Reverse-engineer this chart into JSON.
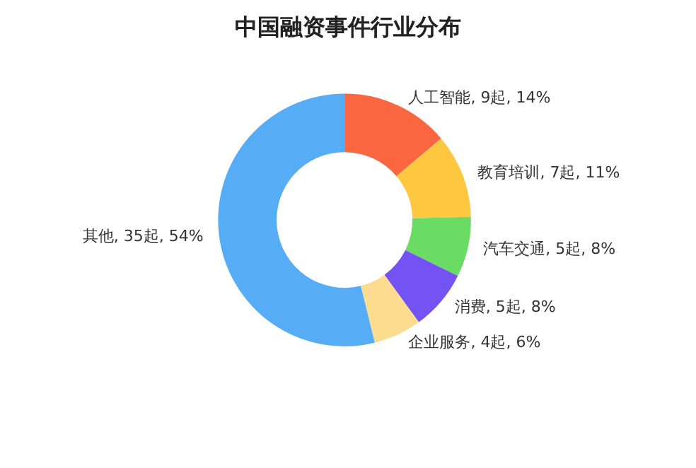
{
  "chart_data": {
    "type": "donut",
    "title": "中国融资事件行业分布",
    "categories": [
      "人工智能",
      "教育培训",
      "汽车交通",
      "消费",
      "企业服务",
      "其他"
    ],
    "values": [
      9,
      7,
      5,
      5,
      4,
      35
    ],
    "value_labels": [
      "9起, 14%",
      "7起, 11%",
      "5起, 8%",
      "5起, 8%",
      "4起, 6%",
      "35起, 54%"
    ],
    "colors": [
      "#fa6640",
      "#fdc73f",
      "#6bdc63",
      "#7453f4",
      "#fcdc8f",
      "#56adf6"
    ],
    "legend": false
  }
}
